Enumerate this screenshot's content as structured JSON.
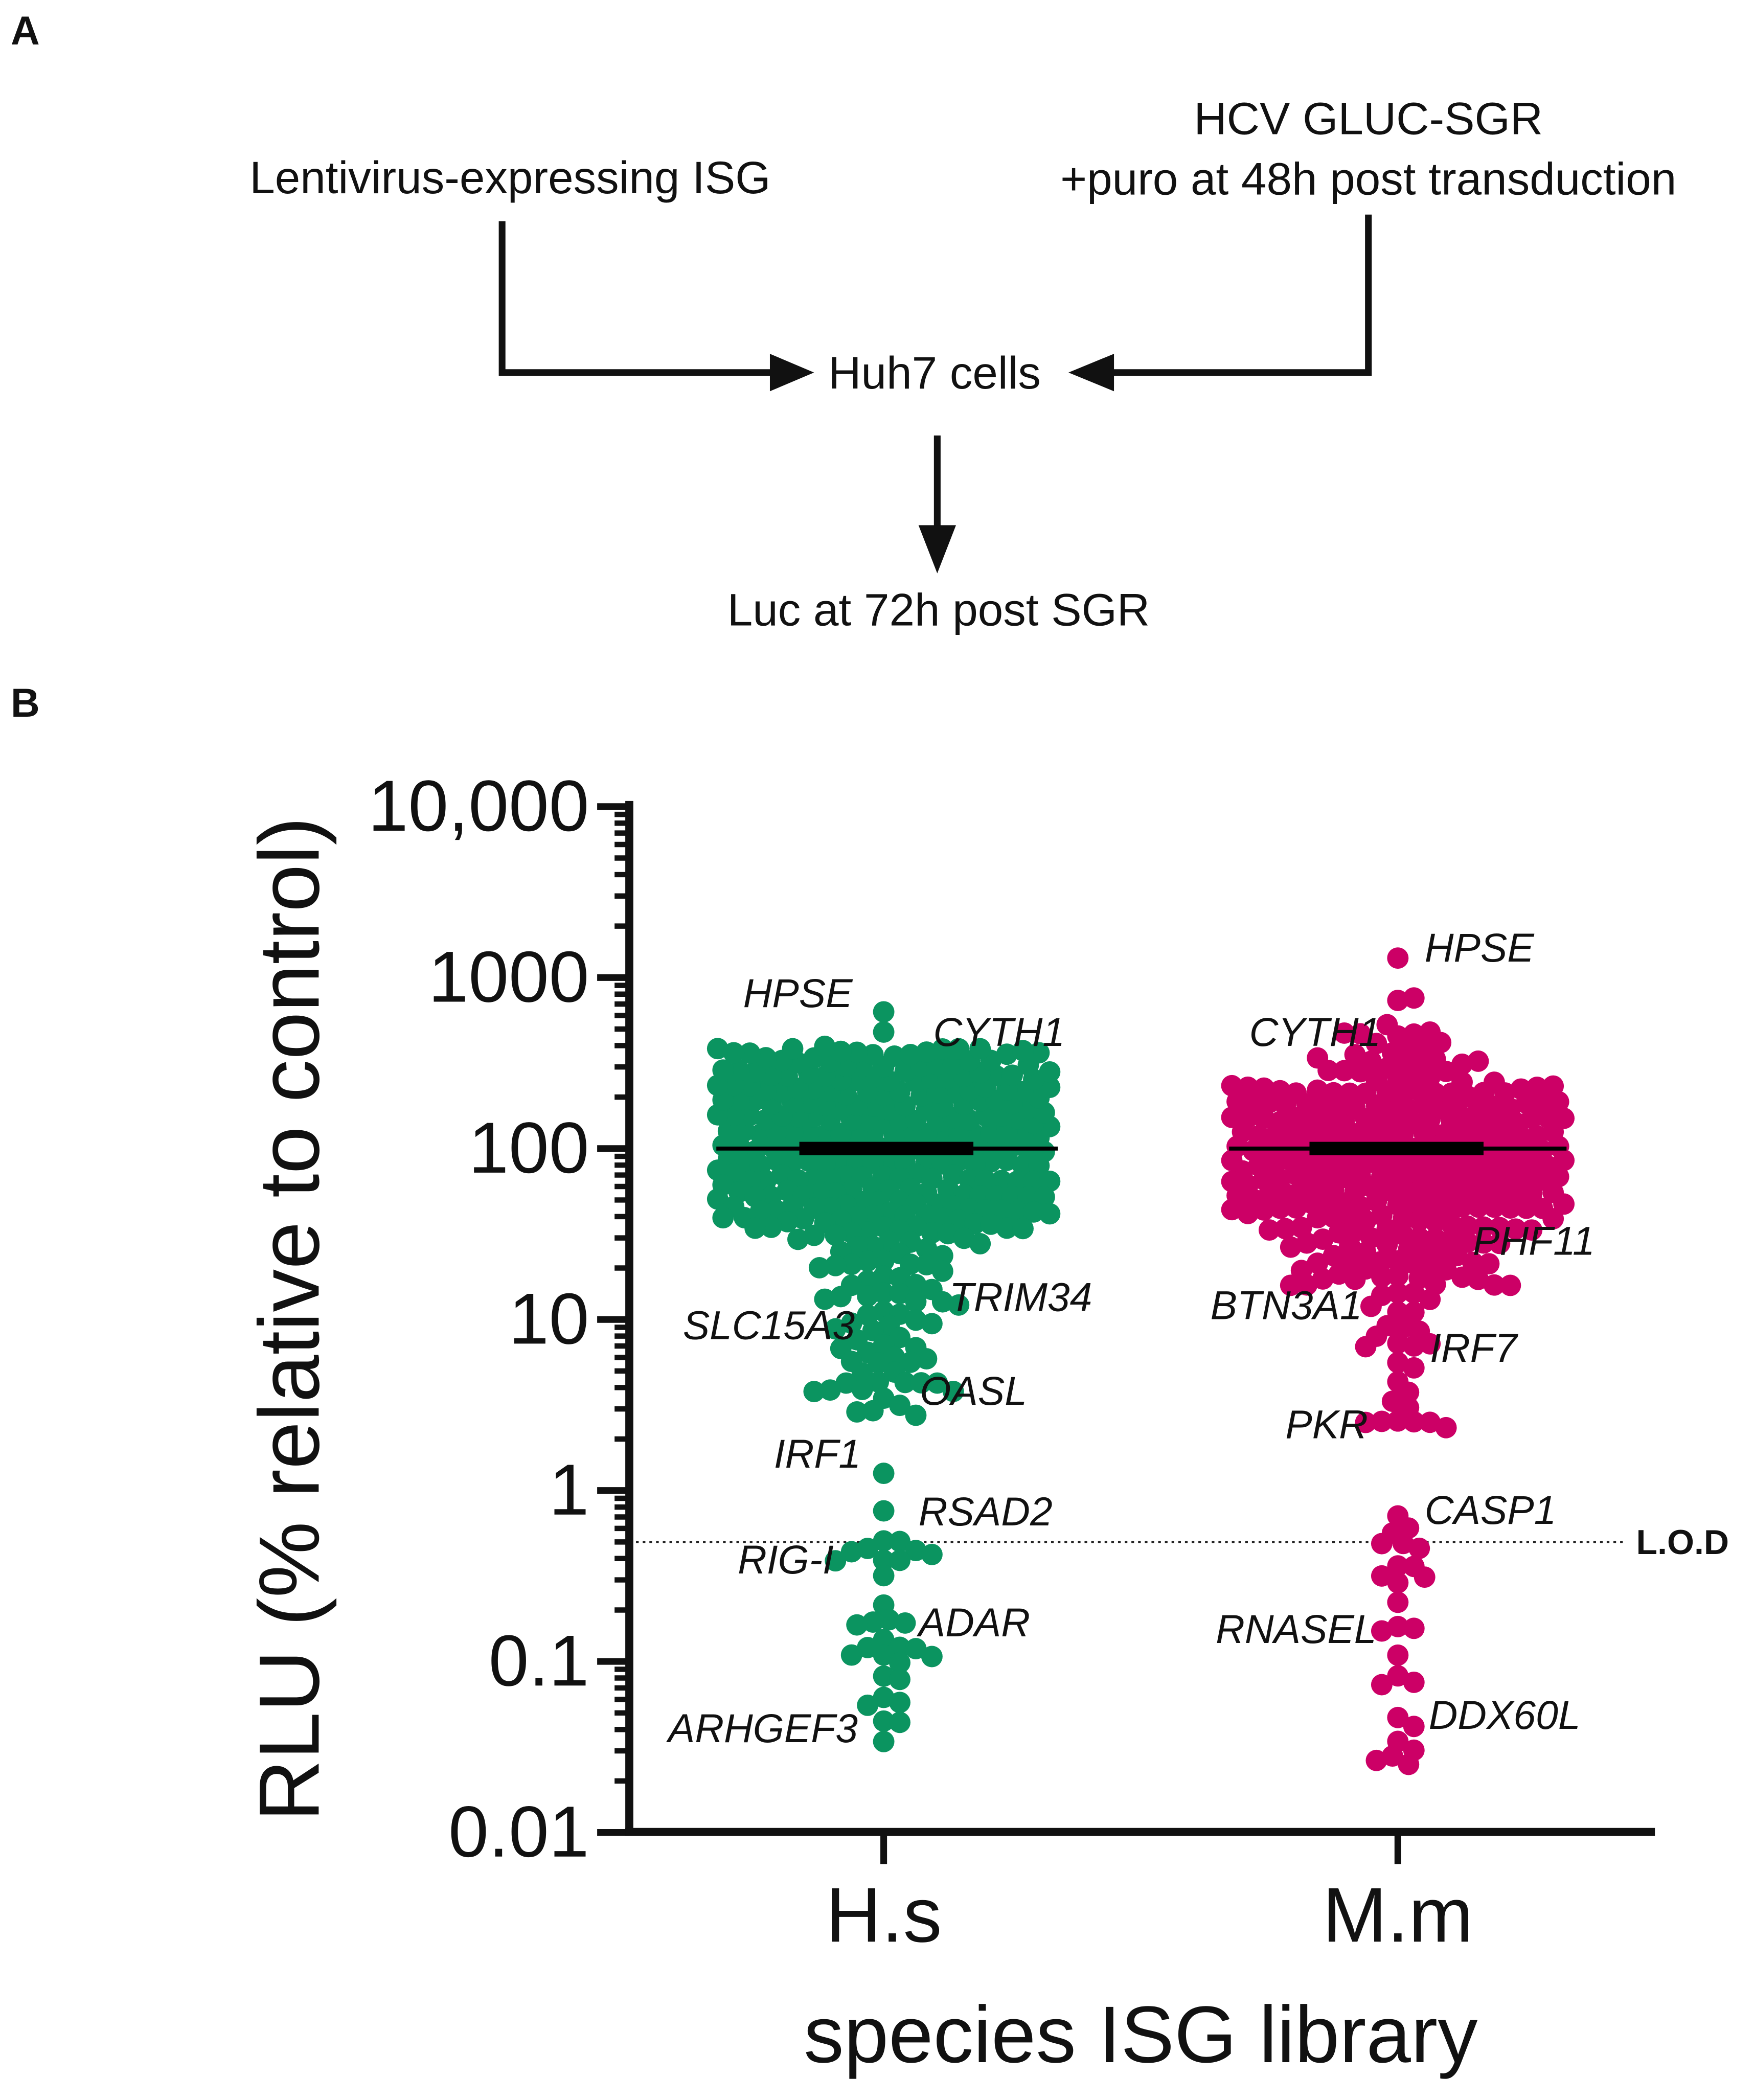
{
  "panel_a": {
    "label": "A",
    "left_input": "Lentivirus-expressing ISG",
    "right_input_line1": "HCV GLUC-SGR",
    "right_input_line2": "+puro at 48h post transduction",
    "center": "Huh7 cells",
    "output": "Luc at 72h post SGR"
  },
  "panel_b": {
    "label": "B"
  },
  "chart_data": {
    "type": "scatter",
    "subtype": "beeswarm",
    "ylabel": "RLU (% relative to control)",
    "xlabel": "species ISG library",
    "yscale": "log",
    "ylim": [
      0.01,
      10000
    ],
    "yticks": [
      "10,000",
      "1000",
      "100",
      "10",
      "1",
      "0.1",
      "0.01"
    ],
    "ytick_values": [
      10000,
      1000,
      100,
      10,
      1,
      0.1,
      0.01
    ],
    "categories": [
      "H.s",
      "M.m"
    ],
    "lod": {
      "label": "L.O.D",
      "value": 0.5
    },
    "median": 100,
    "series": [
      {
        "category": "H.s",
        "color": "#0b9460",
        "labeled_points": [
          {
            "gene": "HPSE",
            "value": 630
          },
          {
            "gene": "CYTH1",
            "value": 480
          },
          {
            "gene": "TRIM34",
            "value": 13.7
          },
          {
            "gene": "SLC15A3",
            "value": 9.2
          },
          {
            "gene": "OASL",
            "value": 3.9
          },
          {
            "gene": "IRF1",
            "value": 1.26
          },
          {
            "gene": "RSAD2",
            "value": 0.76
          },
          {
            "gene": "RIG-I",
            "value": 0.39
          },
          {
            "gene": "ADAR",
            "value": 0.17
          },
          {
            "gene": "ARHGEF3",
            "value": 0.034
          }
        ]
      },
      {
        "category": "M.m",
        "color": "#cc0066",
        "labeled_points": [
          {
            "gene": "HPSE",
            "value": 1300
          },
          {
            "gene": "CYTH1",
            "value": 480
          },
          {
            "gene": "PHF11",
            "value": 28
          },
          {
            "gene": "BTN3A1",
            "value": 9.2
          },
          {
            "gene": "IRF7",
            "value": 7
          },
          {
            "gene": "PKR",
            "value": 2.5
          },
          {
            "gene": "CASP1",
            "value": 0.71
          },
          {
            "gene": "RNASEL",
            "value": 0.16
          },
          {
            "gene": "DDX60L",
            "value": 0.047
          }
        ]
      }
    ]
  }
}
